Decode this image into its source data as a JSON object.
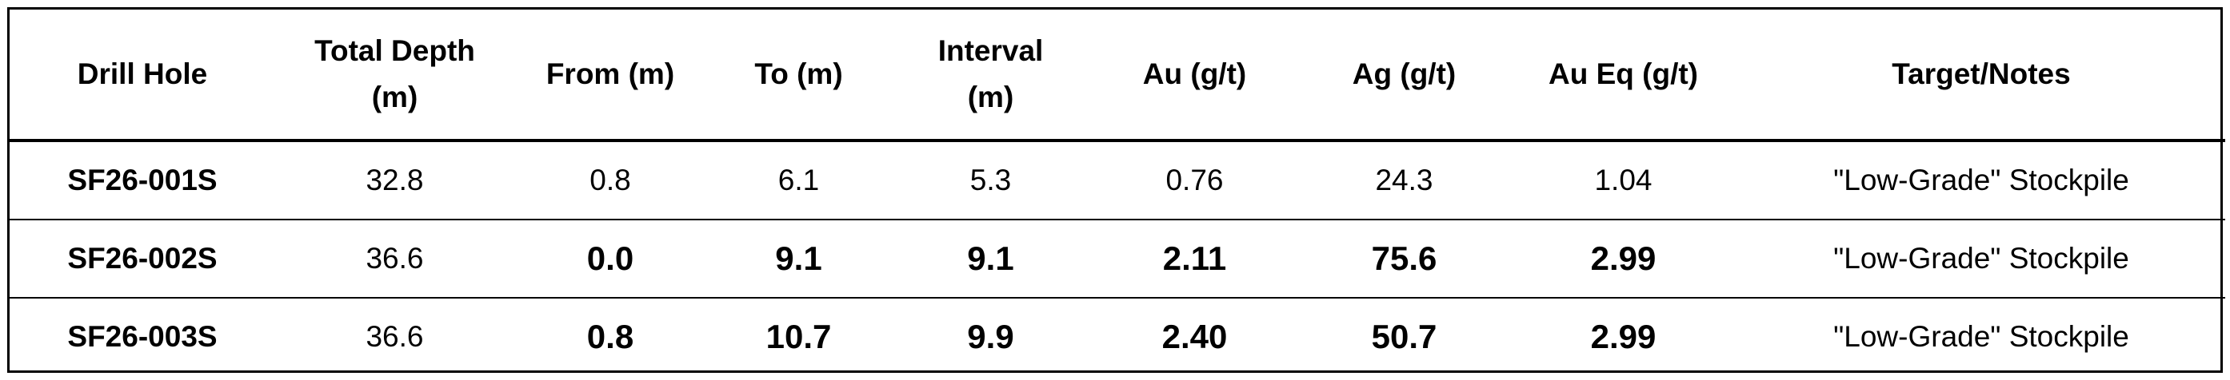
{
  "table": {
    "header": [
      "Drill Hole",
      "Total Depth (m)",
      "From (m)",
      "To (m)",
      "Interval (m)",
      "Au (g/t)",
      "Ag (g/t)",
      "Au Eq (g/t)",
      "Target/Notes"
    ],
    "rows": [
      [
        "SF26-001S",
        "32.8",
        "0.8",
        "6.1",
        "5.3",
        "0.76",
        "24.3",
        "1.04",
        "\"Low-Grade\" Stockpile"
      ],
      [
        "SF26-002S",
        "36.6",
        "0.0",
        "9.1",
        "9.1",
        "2.11",
        "75.6",
        "2.99",
        "\"Low-Grade\" Stockpile"
      ],
      [
        "SF26-003S",
        "36.6",
        "0.8",
        "10.7",
        "9.9",
        "2.40",
        "50.7",
        "2.99",
        "\"Low-Grade\" Stockpile"
      ]
    ]
  }
}
